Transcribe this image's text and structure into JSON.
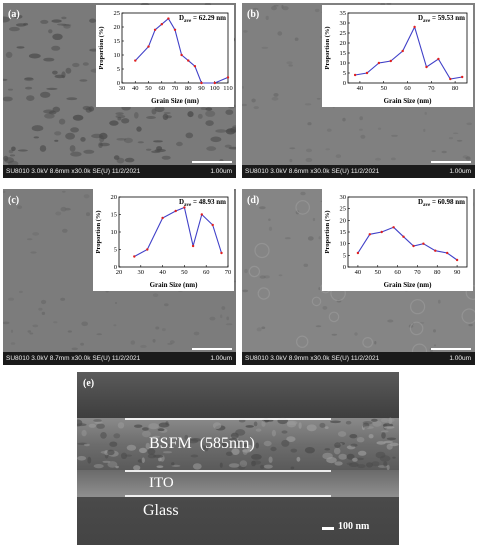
{
  "panels": [
    {
      "label": "(a)",
      "footer": "SU8010 3.0kV 8.6mm x30.0k SE(U) 11/2/2021",
      "scale": "1.00um",
      "chart_data": {
        "type": "line",
        "annotation_main": "D",
        "annotation_sub": "ave",
        "annotation_value": "= 62.29 nm",
        "xlabel": "Grain Size (nm)",
        "ylabel": "Proportion (%)",
        "x": [
          40,
          50,
          55,
          60,
          65,
          70,
          75,
          80,
          85,
          90,
          100,
          110
        ],
        "y": [
          8,
          13,
          19,
          21,
          23,
          19,
          10,
          8,
          6,
          0,
          0,
          2
        ],
        "xlim": [
          30,
          110
        ],
        "ylim": [
          0,
          25
        ],
        "xticks": [
          30,
          40,
          50,
          60,
          70,
          80,
          90,
          100,
          110
        ],
        "yticks": [
          0,
          5,
          10,
          15,
          20,
          25
        ],
        "line_color": "#4040c8",
        "marker_color": "#e02020"
      }
    },
    {
      "label": "(b)",
      "footer": "SU8010 3.0kV 8.6mm x30.0k SE(U) 11/2/2021",
      "scale": "1.00um",
      "chart_data": {
        "type": "line",
        "annotation_main": "D",
        "annotation_sub": "ave",
        "annotation_value": "= 59.53 nm",
        "xlabel": "Grain Size (nm)",
        "ylabel": "Proportion (%)",
        "x": [
          38,
          43,
          48,
          53,
          58,
          63,
          68,
          73,
          78,
          83
        ],
        "y": [
          4,
          5,
          10,
          11,
          16,
          28,
          8,
          12,
          2,
          3
        ],
        "xlim": [
          35,
          85
        ],
        "ylim": [
          0,
          35
        ],
        "xticks": [
          40,
          50,
          60,
          70,
          80
        ],
        "yticks": [
          0,
          5,
          10,
          15,
          20,
          25,
          30,
          35
        ],
        "line_color": "#4040c8",
        "marker_color": "#e02020"
      }
    },
    {
      "label": "(c)",
      "footer": "SU8010 3.0kV 8.7mm x30.0k SE(U) 11/2/2021",
      "scale": "1.00um",
      "chart_data": {
        "type": "line",
        "annotation_main": "D",
        "annotation_sub": "ave",
        "annotation_value": "= 48.93 nm",
        "xlabel": "Grain Size (nm)",
        "ylabel": "Proportion (%)",
        "x": [
          27,
          33,
          40,
          46,
          50,
          54,
          58,
          63,
          67
        ],
        "y": [
          3,
          5,
          14,
          16,
          17,
          6,
          15,
          12,
          4
        ],
        "xlim": [
          20,
          70
        ],
        "ylim": [
          0,
          20
        ],
        "xticks": [
          20,
          30,
          40,
          50,
          60,
          70
        ],
        "yticks": [
          0,
          5,
          10,
          15,
          20
        ],
        "line_color": "#4040c8",
        "marker_color": "#e02020"
      }
    },
    {
      "label": "(d)",
      "footer": "SU8010 3.0kV 8.9mm x30.0k SE(U) 11/2/2021",
      "scale": "1.00um",
      "chart_data": {
        "type": "line",
        "annotation_main": "D",
        "annotation_sub": "ave",
        "annotation_value": "= 60.98 nm",
        "xlabel": "Grain Size (nm)",
        "ylabel": "Proportion (%)",
        "x": [
          40,
          46,
          52,
          58,
          63,
          68,
          73,
          79,
          85,
          90
        ],
        "y": [
          6,
          14,
          15,
          17,
          13,
          9,
          10,
          7,
          6,
          3
        ],
        "xlim": [
          35,
          95
        ],
        "ylim": [
          0,
          30
        ],
        "xticks": [
          40,
          50,
          60,
          70,
          80,
          90
        ],
        "yticks": [
          0,
          5,
          10,
          15,
          20,
          25,
          30
        ],
        "line_color": "#4040c8",
        "marker_color": "#e02020"
      }
    }
  ],
  "cross_section": {
    "label": "(e)",
    "layer_film": "BSFM  (585nm)",
    "layer_ito": "ITO",
    "layer_glass": "Glass",
    "scalebar": "100 nm"
  }
}
